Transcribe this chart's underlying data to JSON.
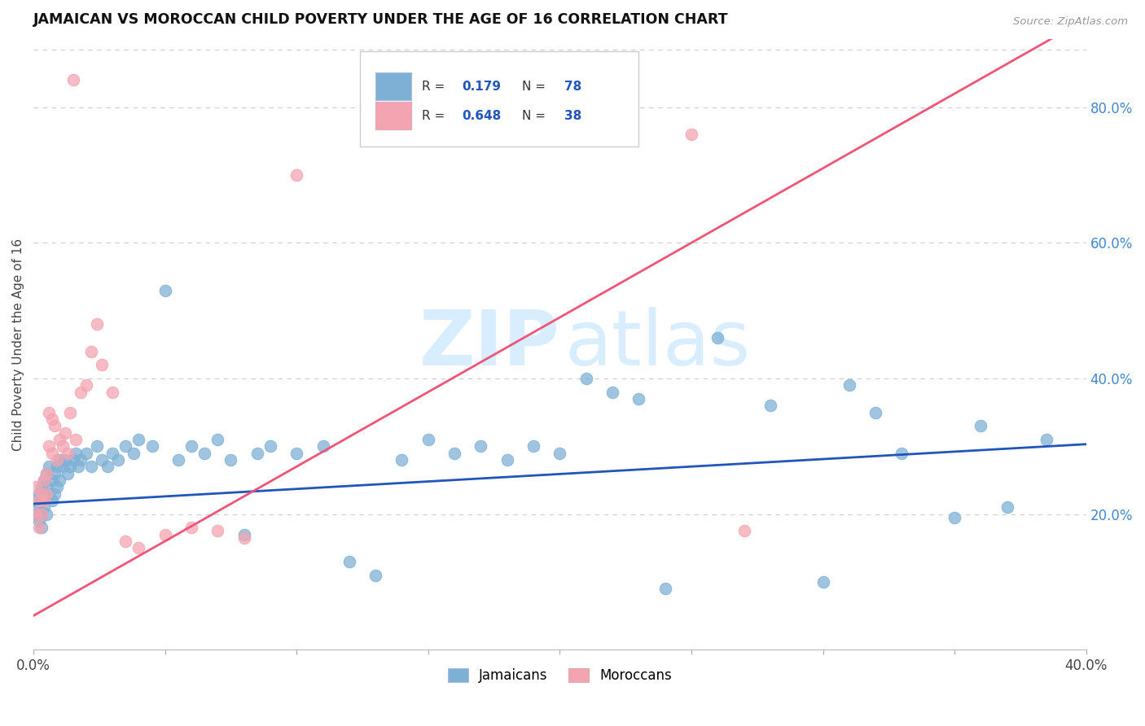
{
  "title": "JAMAICAN VS MOROCCAN CHILD POVERTY UNDER THE AGE OF 16 CORRELATION CHART",
  "source": "Source: ZipAtlas.com",
  "ylabel": "Child Poverty Under the Age of 16",
  "xlim": [
    0.0,
    0.4
  ],
  "ylim": [
    0.0,
    0.9
  ],
  "blue_color": "#7EB0D5",
  "pink_color": "#F4A4B0",
  "trend_blue": "#2255BB",
  "trend_pink": "#EE5577",
  "background": "#FFFFFF",
  "grid_color": "#CCCCCC",
  "blue_r": "0.179",
  "blue_n": "78",
  "pink_r": "0.648",
  "pink_n": "38",
  "accent_color": "#2255BB",
  "jamaicans_x": [
    0.001,
    0.001,
    0.002,
    0.002,
    0.002,
    0.003,
    0.003,
    0.003,
    0.003,
    0.004,
    0.004,
    0.004,
    0.005,
    0.005,
    0.005,
    0.006,
    0.006,
    0.007,
    0.007,
    0.008,
    0.008,
    0.009,
    0.009,
    0.01,
    0.01,
    0.011,
    0.012,
    0.013,
    0.014,
    0.015,
    0.016,
    0.017,
    0.018,
    0.02,
    0.022,
    0.024,
    0.026,
    0.028,
    0.03,
    0.032,
    0.035,
    0.038,
    0.04,
    0.045,
    0.05,
    0.055,
    0.06,
    0.065,
    0.07,
    0.075,
    0.08,
    0.085,
    0.09,
    0.1,
    0.11,
    0.12,
    0.13,
    0.14,
    0.15,
    0.16,
    0.17,
    0.18,
    0.19,
    0.2,
    0.21,
    0.22,
    0.23,
    0.24,
    0.26,
    0.28,
    0.3,
    0.31,
    0.32,
    0.33,
    0.35,
    0.36,
    0.37,
    0.385
  ],
  "jamaicans_y": [
    0.22,
    0.2,
    0.23,
    0.21,
    0.19,
    0.24,
    0.22,
    0.2,
    0.18,
    0.25,
    0.23,
    0.21,
    0.26,
    0.24,
    0.2,
    0.27,
    0.23,
    0.25,
    0.22,
    0.26,
    0.23,
    0.27,
    0.24,
    0.28,
    0.25,
    0.27,
    0.28,
    0.26,
    0.27,
    0.28,
    0.29,
    0.27,
    0.28,
    0.29,
    0.27,
    0.3,
    0.28,
    0.27,
    0.29,
    0.28,
    0.3,
    0.29,
    0.31,
    0.3,
    0.53,
    0.28,
    0.3,
    0.29,
    0.31,
    0.28,
    0.17,
    0.29,
    0.3,
    0.29,
    0.3,
    0.13,
    0.11,
    0.28,
    0.31,
    0.29,
    0.3,
    0.28,
    0.3,
    0.29,
    0.4,
    0.38,
    0.37,
    0.09,
    0.46,
    0.36,
    0.1,
    0.39,
    0.35,
    0.29,
    0.195,
    0.33,
    0.21,
    0.31
  ],
  "moroccans_x": [
    0.001,
    0.001,
    0.002,
    0.002,
    0.003,
    0.003,
    0.004,
    0.004,
    0.005,
    0.005,
    0.006,
    0.006,
    0.007,
    0.007,
    0.008,
    0.009,
    0.01,
    0.011,
    0.012,
    0.013,
    0.014,
    0.015,
    0.016,
    0.018,
    0.02,
    0.022,
    0.024,
    0.026,
    0.03,
    0.035,
    0.04,
    0.05,
    0.06,
    0.07,
    0.08,
    0.1,
    0.25,
    0.27
  ],
  "moroccans_y": [
    0.24,
    0.2,
    0.22,
    0.18,
    0.23,
    0.2,
    0.25,
    0.22,
    0.26,
    0.23,
    0.35,
    0.3,
    0.34,
    0.29,
    0.33,
    0.28,
    0.31,
    0.3,
    0.32,
    0.29,
    0.35,
    0.84,
    0.31,
    0.38,
    0.39,
    0.44,
    0.48,
    0.42,
    0.38,
    0.16,
    0.15,
    0.17,
    0.18,
    0.175,
    0.165,
    0.7,
    0.76,
    0.175
  ],
  "trend_blue_intercept": 0.215,
  "trend_blue_slope": 0.22,
  "trend_pink_intercept": 0.05,
  "trend_pink_slope": 2.2
}
